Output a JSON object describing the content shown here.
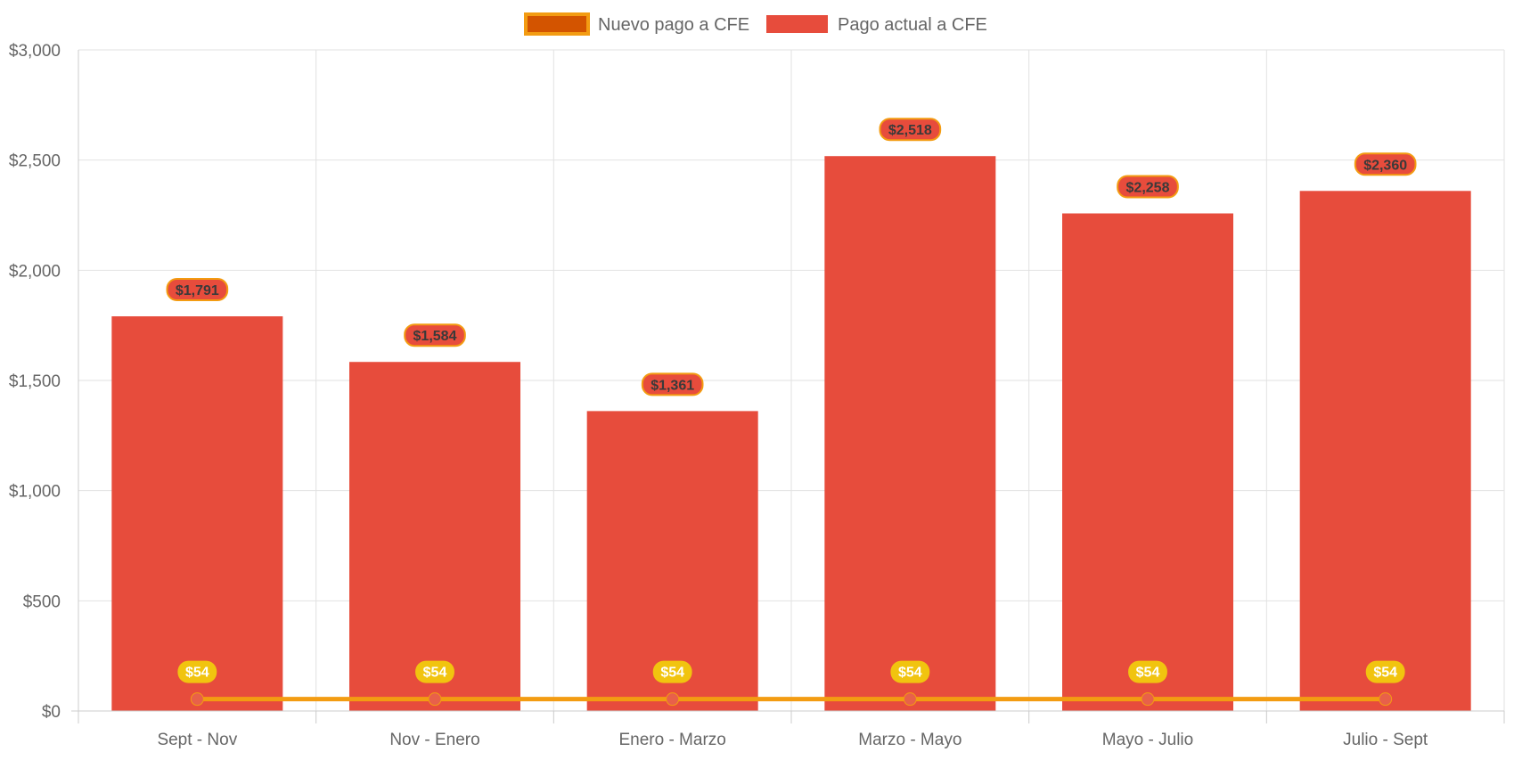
{
  "chart_data": {
    "type": "bar",
    "categories": [
      "Sept - Nov",
      "Nov - Enero",
      "Enero - Marzo",
      "Marzo - Mayo",
      "Mayo - Julio",
      "Julio - Sept"
    ],
    "series": [
      {
        "name": "Nuevo pago a CFE",
        "type": "line",
        "values": [
          54,
          54,
          54,
          54,
          54,
          54
        ],
        "labels": [
          "$54",
          "$54",
          "$54",
          "$54",
          "$54",
          "$54"
        ],
        "color": "#f39c12",
        "point_color": "#e8604a",
        "label_bg": "#f1c40f",
        "legend_fill": "#d35400"
      },
      {
        "name": "Pago actual a CFE",
        "type": "bar",
        "values": [
          1791,
          1584,
          1361,
          2518,
          2258,
          2360
        ],
        "labels": [
          "$1,791",
          "$1,584",
          "$1,361",
          "$2,518",
          "$2,258",
          "$2,360"
        ],
        "color": "#e74c3c",
        "label_border": "#f39c12"
      }
    ],
    "ylim": [
      0,
      3000
    ],
    "yticks": [
      0,
      500,
      1000,
      1500,
      2000,
      2500,
      3000
    ],
    "ytick_labels": [
      "$0",
      "$500",
      "$1,000",
      "$1,500",
      "$2,000",
      "$2,500",
      "$3,000"
    ],
    "grid": true,
    "legend": "top-center",
    "title": "",
    "xlabel": "",
    "ylabel": ""
  }
}
